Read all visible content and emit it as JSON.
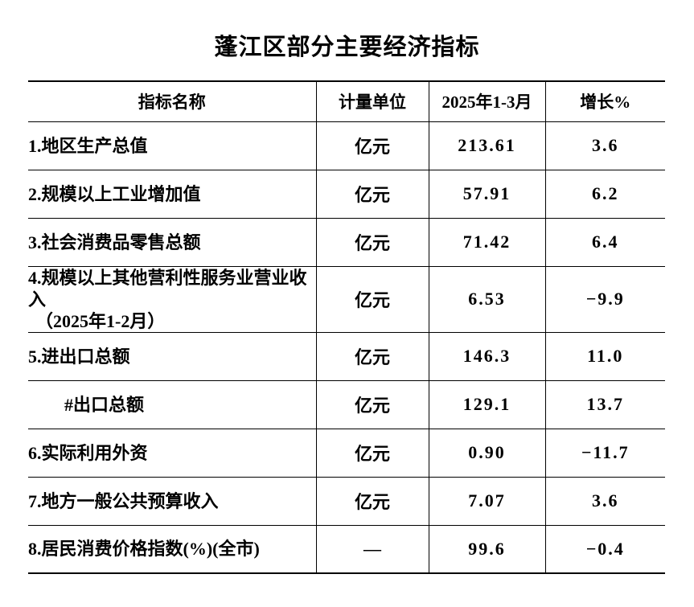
{
  "title": "蓬江区部分主要经济指标",
  "table": {
    "headers": [
      "指标名称",
      "计量单位",
      "2025年1-3月",
      "增长%"
    ],
    "rows": [
      {
        "name": "1.地区生产总值",
        "unit": "亿元",
        "value": "213.61",
        "growth": "3.6"
      },
      {
        "name": "2.规模以上工业增加值",
        "unit": "亿元",
        "value": "57.91",
        "growth": "6.2"
      },
      {
        "name": "3.社会消费品零售总额",
        "unit": "亿元",
        "value": "71.42",
        "growth": "6.4"
      },
      {
        "name": "4.规模以上其他营利性服务业营业收入",
        "name_line2": "（2025年1-2月）",
        "unit": "亿元",
        "value": "6.53",
        "growth": "−9.9"
      },
      {
        "name": "5.进出口总额",
        "unit": "亿元",
        "value": "146.3",
        "growth": "11.0"
      },
      {
        "name": "#出口总额",
        "indent": true,
        "unit": "亿元",
        "value": "129.1",
        "growth": "13.7"
      },
      {
        "name": "6.实际利用外资",
        "unit": "亿元",
        "value": "0.90",
        "growth": "−11.7"
      },
      {
        "name": "7.地方一般公共预算收入",
        "unit": "亿元",
        "value": "7.07",
        "growth": "3.6"
      },
      {
        "name": "8.居民消费价格指数(%)(全市)",
        "unit": "—",
        "value": "99.6",
        "growth": "−0.4"
      }
    ]
  },
  "colors": {
    "background": "#ffffff",
    "text": "#000000",
    "border": "#000000"
  }
}
